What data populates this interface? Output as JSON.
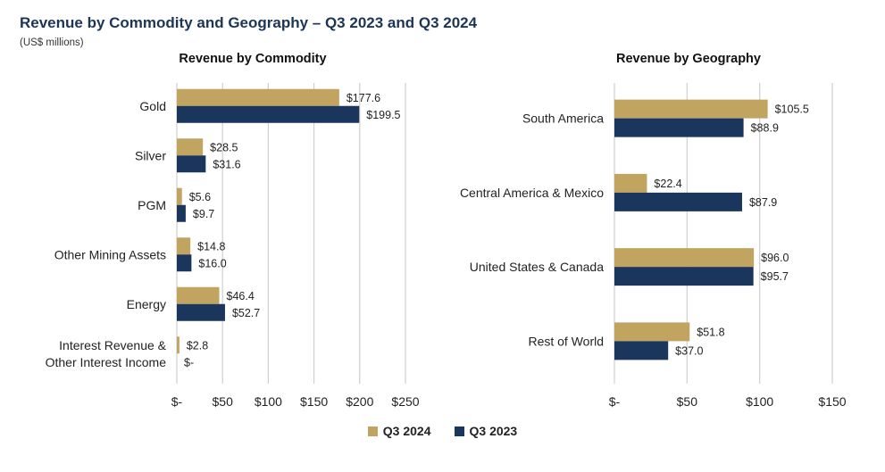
{
  "page": {
    "title": "Revenue by Commodity and Geography – Q3 2023 and Q3 2024",
    "subtitle": "(US$ millions)"
  },
  "colors": {
    "q3_2024": "#c2a461",
    "q3_2023": "#1b365d",
    "grid": "#cfcfcf"
  },
  "legend": [
    {
      "label": "Q3 2024",
      "color": "#c2a461"
    },
    {
      "label": "Q3 2023",
      "color": "#1b365d"
    }
  ],
  "chart_data": [
    {
      "type": "bar",
      "orientation": "horizontal",
      "title": "Revenue by Commodity",
      "categories": [
        [
          "Gold"
        ],
        [
          "Silver"
        ],
        [
          "PGM"
        ],
        [
          "Other Mining Assets"
        ],
        [
          "Energy"
        ],
        [
          "Interest Revenue &",
          "Other Interest Income"
        ]
      ],
      "series": [
        {
          "name": "Q3 2024",
          "values": [
            177.6,
            28.5,
            5.6,
            14.8,
            46.4,
            2.8
          ],
          "labels": [
            "$177.6",
            "$28.5",
            "$5.6",
            "$14.8",
            "$46.4",
            "$2.8"
          ]
        },
        {
          "name": "Q3 2023",
          "values": [
            199.5,
            31.6,
            9.7,
            16.0,
            52.7,
            0
          ],
          "labels": [
            "$199.5",
            "$31.6",
            "$9.7",
            "$16.0",
            "$52.7",
            "$-"
          ]
        }
      ],
      "xlim": [
        0,
        250
      ],
      "ticks": [
        0,
        50,
        100,
        150,
        200,
        250
      ],
      "tick_labels": [
        "$-",
        "$50",
        "$100",
        "$150",
        "$200",
        "$250"
      ],
      "grid": true
    },
    {
      "type": "bar",
      "orientation": "horizontal",
      "title": "Revenue by Geography",
      "categories": [
        [
          "South America"
        ],
        [
          "Central America & Mexico"
        ],
        [
          "United States & Canada"
        ],
        [
          "Rest of World"
        ]
      ],
      "series": [
        {
          "name": "Q3 2024",
          "values": [
            105.5,
            22.4,
            96.0,
            51.8
          ],
          "labels": [
            "$105.5",
            "$22.4",
            "$96.0",
            "$51.8"
          ]
        },
        {
          "name": "Q3 2023",
          "values": [
            88.9,
            87.9,
            95.7,
            37.0
          ],
          "labels": [
            "$88.9",
            "$87.9",
            "$95.7",
            "$37.0"
          ]
        }
      ],
      "xlim": [
        0,
        150
      ],
      "ticks": [
        0,
        50,
        100,
        150
      ],
      "tick_labels": [
        "$-",
        "$50",
        "$100",
        "$150"
      ],
      "grid": true
    }
  ]
}
